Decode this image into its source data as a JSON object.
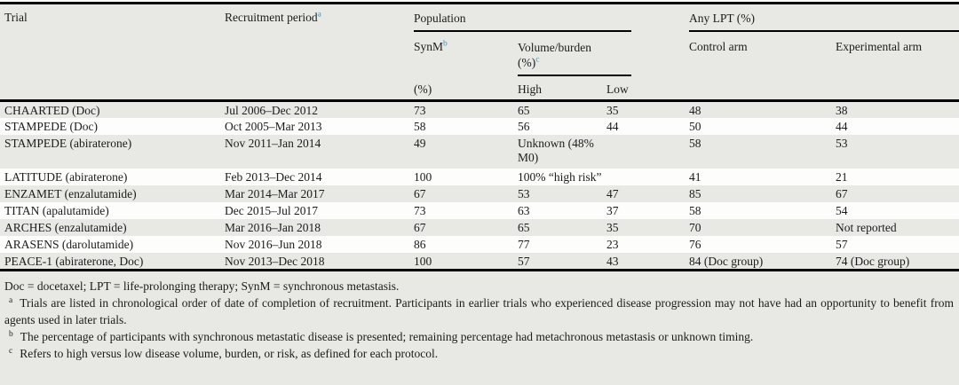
{
  "colors": {
    "superscript_accent": "#2e9dc6",
    "stripe_gray": "#e8e8e5",
    "stripe_white": "#fdfdfc",
    "rule_black": "#000000"
  },
  "table": {
    "header": {
      "trial": "Trial",
      "recruitment": {
        "label": "Recruitment period",
        "sup": "a"
      },
      "population": "Population",
      "any_lpt": "Any LPT (%)",
      "synm": {
        "label": "SynM",
        "sup": "b",
        "unit": "(%)"
      },
      "volume": {
        "line1": "Volume/burden",
        "line2": "(%)",
        "sup": "c"
      },
      "high": "High",
      "low": "Low",
      "control": "Control arm",
      "experimental": "Experimental arm"
    },
    "rows": [
      {
        "trial": "CHAARTED (Doc)",
        "period": "Jul 2006–Dec 2012",
        "synm": "73",
        "high": "65",
        "low": "35",
        "control": "48",
        "experimental": "38"
      },
      {
        "trial": "STAMPEDE (Doc)",
        "period": "Oct 2005–Mar 2013",
        "synm": "58",
        "high": "56",
        "low": "44",
        "control": "50",
        "experimental": "44"
      },
      {
        "trial": "STAMPEDE (abiraterone)",
        "period": "Nov 2011–Jan 2014",
        "synm": "49",
        "volume": "Unknown (48% M0)",
        "control": "58",
        "experimental": "53"
      },
      {
        "trial": "LATITUDE (abiraterone)",
        "period": "Feb 2013–Dec 2014",
        "synm": "100",
        "volume": "100% “high risk”",
        "control": "41",
        "experimental": "21"
      },
      {
        "trial": "ENZAMET (enzalutamide)",
        "period": "Mar 2014–Mar 2017",
        "synm": "67",
        "high": "53",
        "low": "47",
        "control": "85",
        "experimental": "67"
      },
      {
        "trial": "TITAN (apalutamide)",
        "period": "Dec 2015–Jul 2017",
        "synm": "73",
        "high": "63",
        "low": "37",
        "control": "58",
        "experimental": "54"
      },
      {
        "trial": "ARCHES (enzalutamide)",
        "period": "Mar 2016–Jan 2018",
        "synm": "67",
        "high": "65",
        "low": "35",
        "control": "70",
        "experimental": "Not reported"
      },
      {
        "trial": "ARASENS (darolutamide)",
        "period": "Nov 2016–Jun 2018",
        "synm": "86",
        "high": "77",
        "low": "23",
        "control": "76",
        "experimental": "57"
      },
      {
        "trial": "PEACE-1 (abiraterone, Doc)",
        "period": "Nov 2013–Dec 2018",
        "synm": "100",
        "high": "57",
        "low": "43",
        "control": "84 (Doc group)",
        "experimental": "74 (Doc group)"
      }
    ]
  },
  "footnotes": {
    "abbreviations": "Doc = docetaxel; LPT = life-prolonging therapy; SynM = synchronous metastasis.",
    "items": [
      {
        "marker": "a",
        "text": "Trials are listed in chronological order of date of completion of recruitment. Participants in earlier trials who experienced disease progression may not have had an opportunity to benefit from agents used in later trials."
      },
      {
        "marker": "b",
        "text": "The percentage of participants with synchronous metastatic disease is presented; remaining percentage had metachronous metastasis or unknown timing."
      },
      {
        "marker": "c",
        "text": "Refers to high versus low disease volume, burden, or risk, as defined for each protocol."
      }
    ]
  }
}
